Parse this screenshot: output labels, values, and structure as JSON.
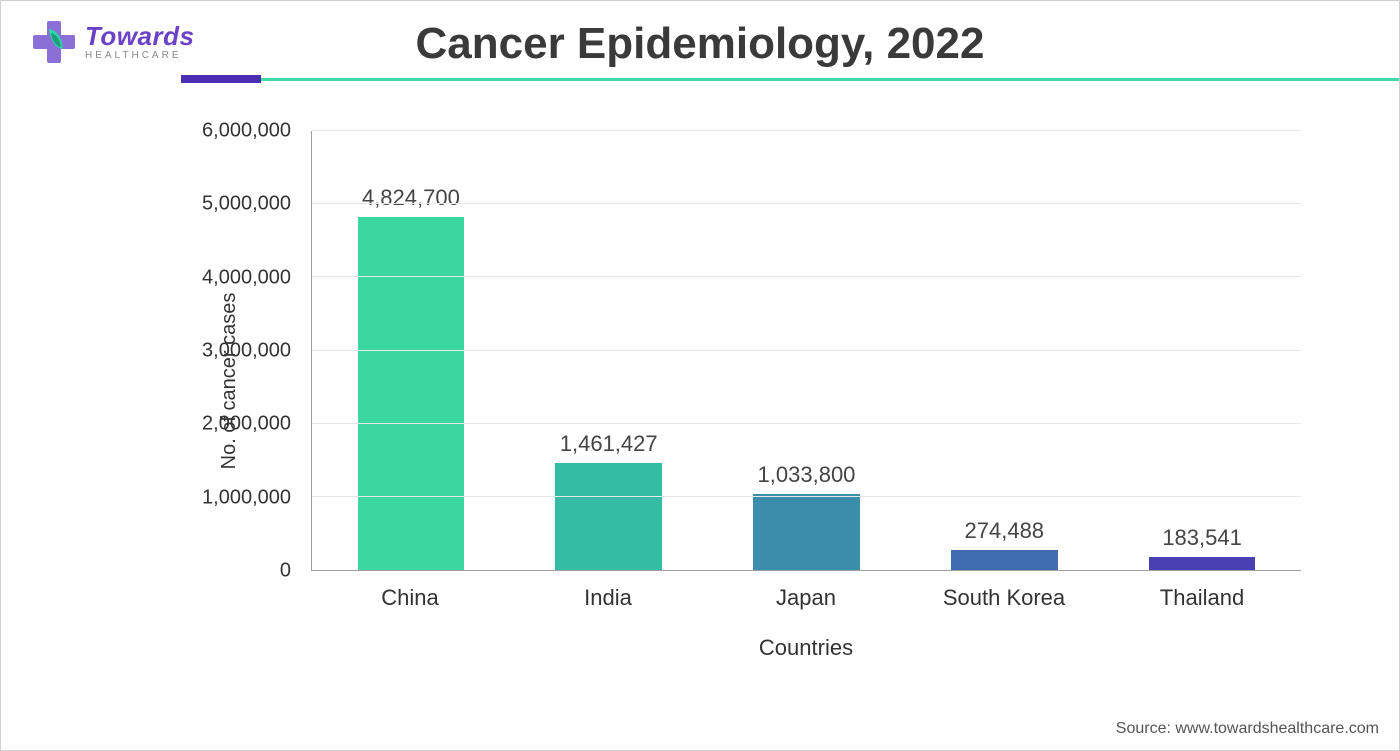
{
  "brand": {
    "name": "Towards",
    "sub": "HEALTHCARE",
    "name_color": "#6b41c7",
    "cross_color": "#8a6fd6",
    "leaf_color_a": "#2cd6a6",
    "leaf_color_b": "#1d9d7a"
  },
  "title": "Cancer Epidemiology, 2022",
  "divider": {
    "accent_color": "#4a2fb3",
    "line_color": "#3dd9a8"
  },
  "chart": {
    "type": "bar",
    "ylabel": "No. of cancer cases",
    "xlabel": "Countries",
    "ylim_max": 6000000,
    "ytick_step": 1000000,
    "yticks": [
      {
        "v": 0,
        "label": "0"
      },
      {
        "v": 1000000,
        "label": "1,000,000"
      },
      {
        "v": 2000000,
        "label": "2,000,000"
      },
      {
        "v": 3000000,
        "label": "3,000,000"
      },
      {
        "v": 4000000,
        "label": "4,000,000"
      },
      {
        "v": 5000000,
        "label": "5,000,000"
      },
      {
        "v": 6000000,
        "label": "6,000,000"
      }
    ],
    "bars": [
      {
        "category": "China",
        "value": 4824700,
        "value_label": "4,824,700",
        "color": "#3cd6a0"
      },
      {
        "category": "India",
        "value": 1461427,
        "value_label": "1,461,427",
        "color": "#35bca4"
      },
      {
        "category": "Japan",
        "value": 1033800,
        "value_label": "1,033,800",
        "color": "#3a8eab"
      },
      {
        "category": "South Korea",
        "value": 274488,
        "value_label": "274,488",
        "color": "#3f6db2"
      },
      {
        "category": "Thailand",
        "value": 183541,
        "value_label": "183,541",
        "color": "#4a3fb3"
      }
    ],
    "grid_color": "#e8e8e8",
    "axis_color": "#a0a0a0",
    "label_fontsize": 20,
    "value_fontsize": 22,
    "background_color": "#ffffff",
    "bar_width": 0.6
  },
  "source": "Source: www.towardshealthcare.com"
}
